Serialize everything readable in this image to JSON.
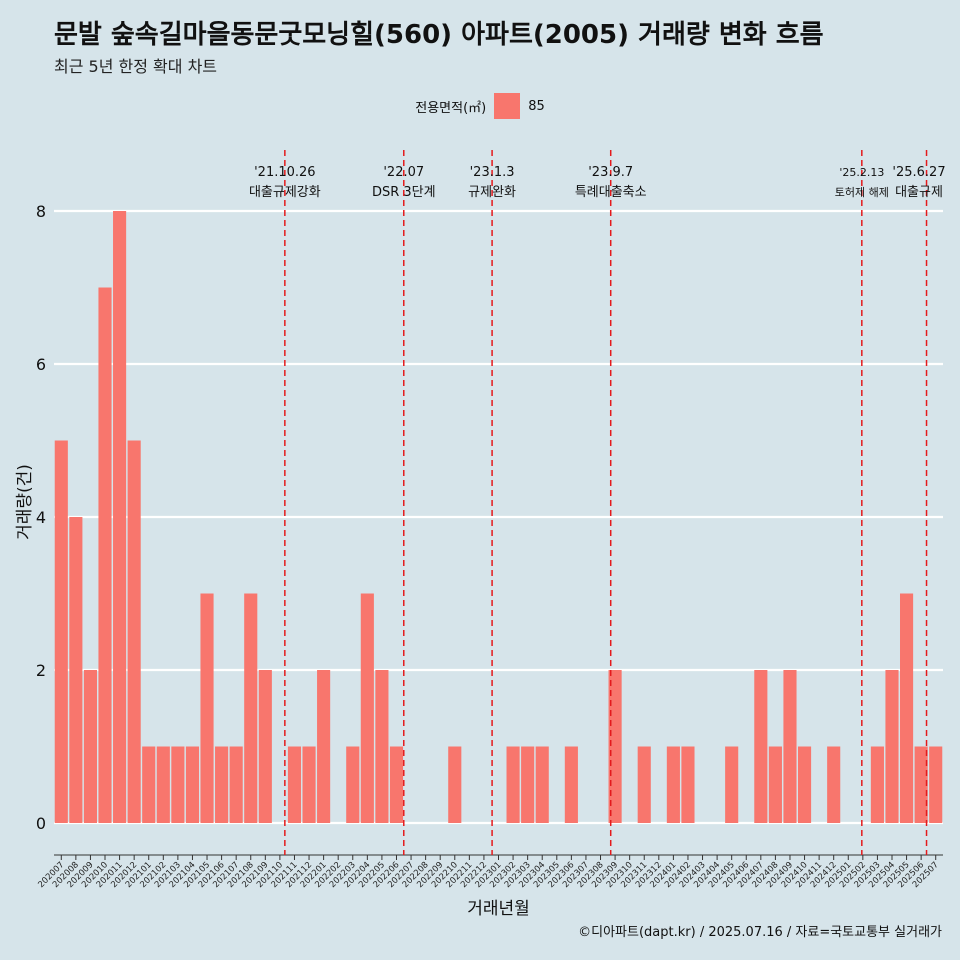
{
  "header": {
    "title": "문발 숲속길마을동문굿모닝힐(560) 아파트(2005) 거래량 변화 흐름",
    "subtitle": "최근 5년 한정 확대 차트"
  },
  "legend": {
    "label": "전용면적(㎡)",
    "entries": [
      "85"
    ]
  },
  "caption": "©디아파트(dapt.kr) / 2025.07.16 / 자료=국토교통부 실거래가",
  "colors": {
    "background": "#d6e4ea",
    "bar": "#f8766d",
    "event_line": "#e41a1c",
    "grid": "#ffffff"
  },
  "chart_data": {
    "type": "bar",
    "xlabel": "거래년월",
    "ylabel": "거래량(건)",
    "ylim": [
      0,
      8
    ],
    "yticks": [
      0,
      2,
      4,
      6,
      8
    ],
    "grid": true,
    "legend_position": "top",
    "categories": [
      "202007",
      "202008",
      "202009",
      "202010",
      "202011",
      "202012",
      "202101",
      "202102",
      "202103",
      "202104",
      "202105",
      "202106",
      "202107",
      "202108",
      "202109",
      "202110",
      "202111",
      "202112",
      "202201",
      "202202",
      "202203",
      "202204",
      "202205",
      "202206",
      "202207",
      "202208",
      "202209",
      "202210",
      "202211",
      "202212",
      "202301",
      "202302",
      "202303",
      "202304",
      "202305",
      "202306",
      "202307",
      "202308",
      "202309",
      "202310",
      "202311",
      "202312",
      "202401",
      "202402",
      "202403",
      "202404",
      "202405",
      "202406",
      "202407",
      "202408",
      "202409",
      "202410",
      "202411",
      "202412",
      "202501",
      "202502",
      "202503",
      "202504",
      "202505",
      "202506",
      "202507"
    ],
    "series": [
      {
        "name": "85",
        "values": [
          5,
          4,
          2,
          7,
          8,
          5,
          1,
          1,
          1,
          1,
          3,
          1,
          1,
          3,
          2,
          0,
          1,
          1,
          2,
          0,
          1,
          3,
          2,
          1,
          0,
          0,
          0,
          1,
          0,
          0,
          0,
          1,
          1,
          1,
          0,
          1,
          0,
          0,
          2,
          0,
          1,
          0,
          1,
          1,
          0,
          0,
          1,
          0,
          2,
          1,
          2,
          1,
          0,
          1,
          0,
          0,
          1,
          2,
          3,
          1,
          1
        ]
      }
    ],
    "annotations": [
      {
        "date": "'21.10.26",
        "label": "대출규제강화",
        "after": "202110",
        "fraction": 0.84
      },
      {
        "date": "'22.07",
        "label": "DSR 3단계",
        "after": "202207",
        "fraction": 0.0
      },
      {
        "date": "'23.1.3",
        "label": "규제완화",
        "after": "202301",
        "fraction": 0.06
      },
      {
        "date": "'23.9.7",
        "label": "특례대출축소",
        "after": "202309",
        "fraction": 0.2
      },
      {
        "date": "'25.2.13",
        "label": "토허제 해제",
        "after": "202502",
        "fraction": 0.43
      },
      {
        "date": "'25.6.27",
        "label": "대출규제",
        "after": "202506",
        "fraction": 0.87
      }
    ]
  }
}
